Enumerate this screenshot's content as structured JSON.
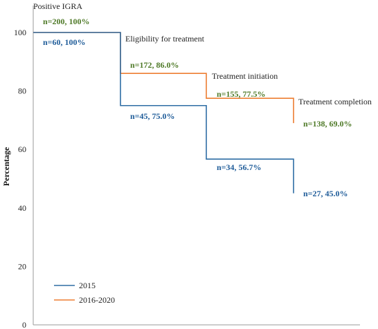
{
  "chart_data": {
    "type": "line",
    "ylabel": "Percentage",
    "ylim": [
      0,
      100
    ],
    "yticks": [
      0,
      20,
      40,
      60,
      80,
      100
    ],
    "stages": [
      "Positive IGRA",
      "Eligibility for treatment",
      "Treatment initiation",
      "Treatment completion"
    ],
    "legend_position": "bottom-left",
    "series": [
      {
        "name": "2015",
        "color": "#2e6da4",
        "label_color": "#1f5c99",
        "values": [
          100,
          75.0,
          56.7,
          45.0
        ],
        "labels": [
          "n=60, 100%",
          "n=45, 75.0%",
          "n=34, 56.7%",
          "n=27, 45.0%"
        ]
      },
      {
        "name": "2016-2020",
        "color": "#ed7d31",
        "label_color": "#4f7a28",
        "values": [
          100,
          86.0,
          77.5,
          69.0
        ],
        "labels": [
          "n=200, 100%",
          "n=172, 86.0%",
          "n=155, 77.5%",
          "n=138, 69.0%"
        ]
      }
    ]
  }
}
